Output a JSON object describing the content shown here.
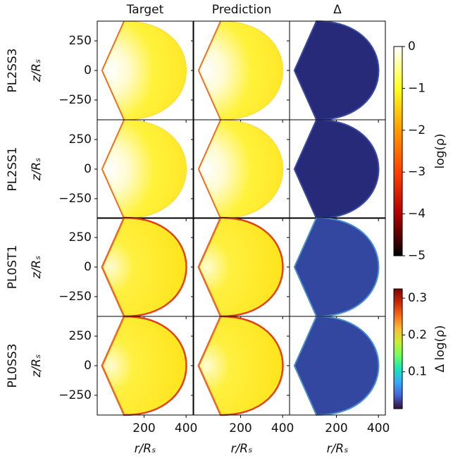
{
  "chart_data": {
    "type": "heatmap",
    "columns": [
      "Target",
      "Prediction",
      "Δ"
    ],
    "rows": [
      "PL2SS3",
      "PL2SS1",
      "PL0ST1",
      "PL0SS3"
    ],
    "ylabel": "z/Rₛ",
    "xlabel": "r/Rₛ",
    "xlim": [
      -23,
      433
    ],
    "xticks": [
      200,
      400
    ],
    "ylim": [
      -417,
      417
    ],
    "yticks": [
      250,
      0,
      {
        "value": -250,
        "label": "−250"
      }
    ],
    "colorbars": [
      {
        "label": "log(ρ)",
        "lim": [
          -5,
          0
        ],
        "colors": [
          "#000000",
          "#b00000",
          "#ff4000",
          "#ff9a00",
          "#ffff20",
          "#ffffff"
        ],
        "ticks": [
          0,
          {
            "value": -1,
            "label": "−1"
          },
          {
            "value": -2,
            "label": "−2"
          },
          {
            "value": -3,
            "label": "−3"
          },
          {
            "value": -4,
            "label": "−4"
          },
          {
            "value": -5,
            "label": "−5"
          }
        ]
      },
      {
        "label": "Δ log(ρ)",
        "lim": [
          0,
          0.325
        ],
        "colors": [
          "#30123b",
          "#4662d7",
          "#36aaf9",
          "#1ae4b6",
          "#72fe5e",
          "#c7ef34",
          "#fabb3a",
          "#f66b19",
          "#c92903",
          "#7a0403"
        ],
        "ticks": [
          0.1,
          0.2,
          0.3
        ]
      }
    ]
  }
}
